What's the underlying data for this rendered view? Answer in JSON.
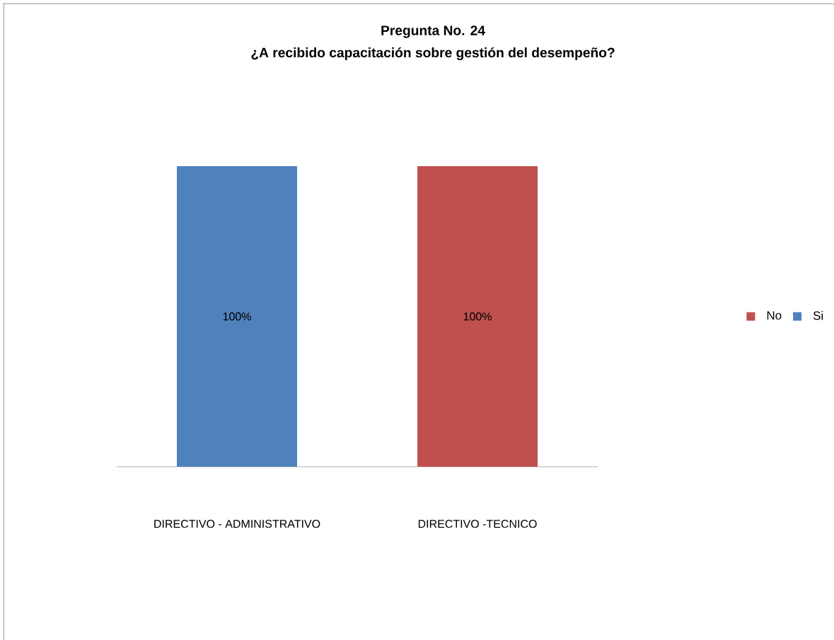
{
  "chart_data": {
    "type": "bar",
    "title": "Pregunta No. 24",
    "subtitle": "¿A recibido capacitación sobre gestión del desempeño?",
    "categories": [
      "DIRECTIVO - ADMINISTRATIVO",
      "DIRECTIVO -TECNICO"
    ],
    "stacked": true,
    "ylim": [
      0,
      100
    ],
    "series": [
      {
        "name": "No",
        "color": "#c0504d",
        "values": [
          null,
          100
        ],
        "value_labels": [
          null,
          "100%"
        ]
      },
      {
        "name": "Si",
        "color": "#4f81bd",
        "values": [
          100,
          null
        ],
        "value_labels": [
          "100%",
          null
        ]
      }
    ],
    "legend": "right"
  }
}
